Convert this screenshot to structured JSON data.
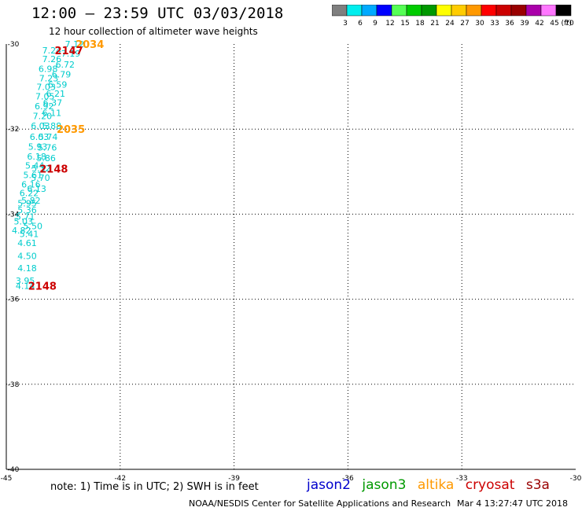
{
  "title": "12:00 – 23:59 UTC 03/03/2018",
  "subtitle": "12 hour collection of altimeter wave heights",
  "note": "note:  1) Time is in UTC;  2) SWH is in feet",
  "footer": {
    "credit": "NOAA/NESDIS Center for Satellite Applications and Research",
    "date": "Mar  4 13:27:47 UTC 2018"
  },
  "satellites": [
    {
      "name": "jason2",
      "color": "#0000cc"
    },
    {
      "name": "jason3",
      "color": "#009900"
    },
    {
      "name": "altika",
      "color": "#ff9900"
    },
    {
      "name": "cryosat",
      "color": "#cc0000"
    },
    {
      "name": "s3a",
      "color": "#990000"
    }
  ],
  "color_scale": {
    "ticks": [
      "3",
      "6",
      "9",
      "12",
      "15",
      "18",
      "21",
      "24",
      "27",
      "30",
      "33",
      "36",
      "39",
      "42",
      "45",
      "70"
    ],
    "unit": "(ft)",
    "colors": [
      "#7f7f7f",
      "#00eeee",
      "#00aaff",
      "#0000ff",
      "#55ff55",
      "#00cc00",
      "#009900",
      "#ffff00",
      "#ffcc00",
      "#ff9900",
      "#ff0000",
      "#cc0000",
      "#990000",
      "#aa00aa",
      "#ff77ff",
      "#000000"
    ]
  },
  "chart_data": {
    "type": "scatter",
    "title": "12:00 – 23:59 UTC 03/03/2018",
    "subtitle": "12 hour collection of altimeter wave heights",
    "xlabel": "",
    "ylabel": "",
    "xlim": [
      -45,
      -30
    ],
    "ylim": [
      -40,
      -30
    ],
    "x_ticks": [
      "-45",
      "-42",
      "-39",
      "-36",
      "-33",
      "-30"
    ],
    "y_ticks": [
      "-30",
      "-32",
      "-34",
      "-36",
      "-38",
      "-40"
    ],
    "x_tick_values": [
      -45,
      -42,
      -39,
      -36,
      -33,
      -30
    ],
    "y_tick_values": [
      -30,
      -32,
      -34,
      -36,
      -38,
      -40
    ],
    "grid": true,
    "points": [
      {
        "lon": -43.2,
        "lat": -30.0,
        "label": "7.12"
      },
      {
        "lon": -43.8,
        "lat": -30.15,
        "label": "7.24"
      },
      {
        "lon": -43.3,
        "lat": -30.22,
        "label": "7.19"
      },
      {
        "lon": -43.8,
        "lat": -30.35,
        "label": "7.26"
      },
      {
        "lon": -43.45,
        "lat": -30.48,
        "label": "6.72"
      },
      {
        "lon": -43.9,
        "lat": -30.58,
        "label": "6.98"
      },
      {
        "lon": -43.55,
        "lat": -30.71,
        "label": "6.79"
      },
      {
        "lon": -43.88,
        "lat": -30.8,
        "label": "7.23"
      },
      {
        "lon": -43.65,
        "lat": -30.95,
        "label": "6.59"
      },
      {
        "lon": -43.95,
        "lat": -31.01,
        "label": "7.03"
      },
      {
        "lon": -43.7,
        "lat": -31.16,
        "label": "6.21"
      },
      {
        "lon": -43.98,
        "lat": -31.23,
        "label": "7.05"
      },
      {
        "lon": -43.78,
        "lat": -31.38,
        "label": "6.37"
      },
      {
        "lon": -44.0,
        "lat": -31.46,
        "label": "6.92"
      },
      {
        "lon": -43.8,
        "lat": -31.62,
        "label": "6.11"
      },
      {
        "lon": -44.05,
        "lat": -31.69,
        "label": "7.20"
      },
      {
        "lon": -44.1,
        "lat": -31.92,
        "label": "6.03"
      },
      {
        "lon": -43.8,
        "lat": -31.92,
        "label": "5.88"
      },
      {
        "lon": -44.13,
        "lat": -32.18,
        "label": "6.03"
      },
      {
        "lon": -43.9,
        "lat": -32.18,
        "label": "5.74"
      },
      {
        "lon": -44.17,
        "lat": -32.41,
        "label": "5.93"
      },
      {
        "lon": -43.92,
        "lat": -32.43,
        "label": "5.76"
      },
      {
        "lon": -44.2,
        "lat": -32.64,
        "label": "6.18"
      },
      {
        "lon": -43.95,
        "lat": -32.68,
        "label": "5.86"
      },
      {
        "lon": -44.25,
        "lat": -32.86,
        "label": "5.44"
      },
      {
        "lon": -44.08,
        "lat": -32.92,
        "label": "5.32"
      },
      {
        "lon": -44.3,
        "lat": -33.08,
        "label": "5.61"
      },
      {
        "lon": -44.1,
        "lat": -33.14,
        "label": "5.70"
      },
      {
        "lon": -44.35,
        "lat": -33.3,
        "label": "6.16"
      },
      {
        "lon": -44.2,
        "lat": -33.4,
        "label": "6.13"
      },
      {
        "lon": -44.4,
        "lat": -33.5,
        "label": "6.22"
      },
      {
        "lon": -44.35,
        "lat": -33.68,
        "label": "5.82"
      },
      {
        "lon": -44.45,
        "lat": -33.74,
        "label": "5.95"
      },
      {
        "lon": -44.45,
        "lat": -33.9,
        "label": "5.36"
      },
      {
        "lon": -44.5,
        "lat": -34.06,
        "label": "5.71"
      },
      {
        "lon": -44.55,
        "lat": -34.17,
        "label": "5.03"
      },
      {
        "lon": -44.3,
        "lat": -34.28,
        "label": "5.50"
      },
      {
        "lon": -44.6,
        "lat": -34.38,
        "label": "4.82"
      },
      {
        "lon": -44.4,
        "lat": -34.46,
        "label": "5.41"
      },
      {
        "lon": -44.45,
        "lat": -34.68,
        "label": "4.61"
      },
      {
        "lon": -44.45,
        "lat": -34.98,
        "label": "4.50"
      },
      {
        "lon": -44.45,
        "lat": -35.27,
        "label": "4.18"
      },
      {
        "lon": -44.5,
        "lat": -35.56,
        "label": "3.95"
      },
      {
        "lon": -44.5,
        "lat": -35.68,
        "label": "4.14"
      }
    ],
    "passes": [
      {
        "lon": -42.8,
        "lat": -30.0,
        "label": "2034",
        "satellite": "altika"
      },
      {
        "lon": -43.35,
        "lat": -30.15,
        "label": "2147",
        "satellite": "cryosat"
      },
      {
        "lon": -43.3,
        "lat": -32.0,
        "label": "2035",
        "satellite": "altika"
      },
      {
        "lon": -43.75,
        "lat": -32.93,
        "label": "2148",
        "satellite": "cryosat"
      },
      {
        "lon": -44.05,
        "lat": -35.68,
        "label": "2148",
        "satellite": "cryosat"
      }
    ]
  }
}
